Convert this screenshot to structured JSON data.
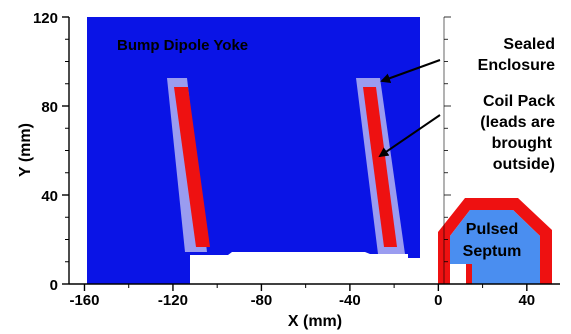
{
  "figure": {
    "x_axis": {
      "label": "X (mm)",
      "ticks": [
        -160,
        -120,
        -80,
        -40,
        0,
        40
      ],
      "range": [
        -167,
        55
      ]
    },
    "y_axis": {
      "label": "Y (mm)",
      "ticks": [
        0,
        40,
        80,
        120
      ],
      "range": [
        0,
        120
      ]
    },
    "labels": {
      "yoke": "Bump Dipole Yoke",
      "enclosure_line1": "Sealed",
      "enclosure_line2": "Enclosure",
      "coil_line1": "Coil Pack",
      "coil_line2": "(leads are",
      "coil_line3": "brought",
      "coil_line4": "outside)",
      "septum_line1": "Pulsed",
      "septum_line2": "Septum"
    },
    "colors": {
      "yoke": "#0a14e6",
      "enclosure": "#9a9cf0",
      "coil": "#ee1111",
      "septum_fill": "#4a8ef0",
      "septum_border": "#ee1111"
    }
  }
}
